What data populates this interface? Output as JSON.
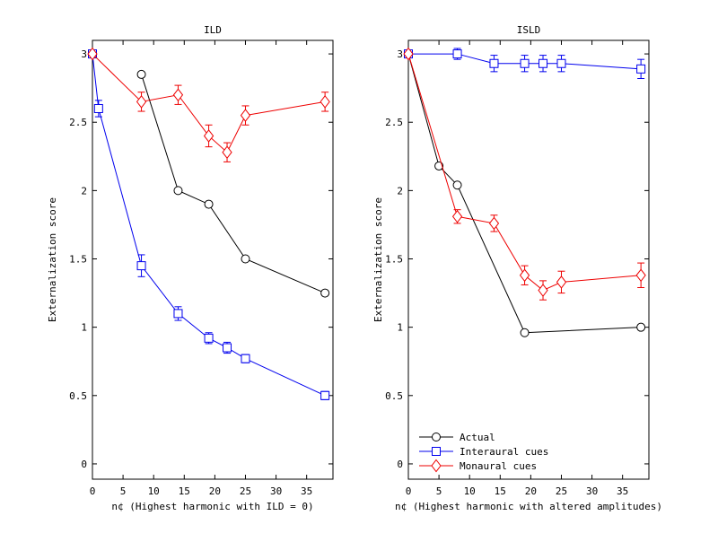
{
  "figure": {
    "background": "#ffffff",
    "axis_color": "#000000"
  },
  "chart_data": [
    {
      "type": "line",
      "title": "ILD",
      "xlabel": "n¢ (Highest harmonic with ILD = 0)",
      "ylabel": "Externalization score",
      "xlim": [
        0,
        39.3
      ],
      "ylim": [
        -0.112,
        3.099
      ],
      "xticks": [
        0,
        5,
        10,
        15,
        20,
        25,
        30,
        35
      ],
      "yticks": [
        0,
        0.5,
        1,
        1.5,
        2,
        2.5,
        3
      ],
      "grid": false,
      "legend": {
        "visible": false
      },
      "series": [
        {
          "name": "Actual",
          "color": "#000000",
          "marker": "circle",
          "x": [
            8,
            14,
            19,
            25,
            38
          ],
          "y": [
            2.85,
            2.0,
            1.9,
            1.5,
            1.25
          ],
          "err": [
            0,
            0,
            0,
            0,
            0
          ]
        },
        {
          "name": "Interaural cues",
          "color": "#0000ee",
          "marker": "square",
          "x": [
            0,
            1,
            8,
            14,
            19,
            22,
            25,
            38
          ],
          "y": [
            3,
            2.6,
            1.45,
            1.1,
            0.92,
            0.85,
            0.77,
            0.5
          ],
          "err": [
            0,
            0.06,
            0.08,
            0.05,
            0.04,
            0.04,
            0.03,
            0.03
          ]
        },
        {
          "name": "Monaural cues",
          "color": "#ee0000",
          "marker": "diamond",
          "x": [
            0,
            8,
            14,
            19,
            22,
            25,
            38
          ],
          "y": [
            3,
            2.65,
            2.7,
            2.4,
            2.28,
            2.55,
            2.65
          ],
          "err": [
            0,
            0.07,
            0.07,
            0.08,
            0.07,
            0.07,
            0.07
          ]
        }
      ]
    },
    {
      "type": "line",
      "title": "ISLD",
      "xlabel": "n¢ (Highest harmonic with altered amplitudes)",
      "ylabel": "Externalization score",
      "xlim": [
        0,
        39.3
      ],
      "ylim": [
        -0.112,
        3.099
      ],
      "xticks": [
        0,
        5,
        10,
        15,
        20,
        25,
        30,
        35
      ],
      "yticks": [
        0,
        0.5,
        1,
        1.5,
        2,
        2.5,
        3
      ],
      "grid": false,
      "legend": {
        "visible": true,
        "position": "southwest",
        "entries": [
          "Actual",
          "Interaural cues",
          "Monaural cues"
        ]
      },
      "series": [
        {
          "name": "Actual",
          "color": "#000000",
          "marker": "circle",
          "x": [
            0,
            5,
            8,
            19,
            38
          ],
          "y": [
            3,
            2.18,
            2.04,
            0.96,
            1.0
          ],
          "err": [
            0,
            0,
            0,
            0,
            0
          ]
        },
        {
          "name": "Interaural cues",
          "color": "#0000ee",
          "marker": "square",
          "x": [
            0,
            8,
            14,
            19,
            22,
            25,
            38
          ],
          "y": [
            3,
            3.0,
            2.93,
            2.93,
            2.93,
            2.93,
            2.89
          ],
          "err": [
            0,
            0.04,
            0.06,
            0.06,
            0.06,
            0.06,
            0.07
          ]
        },
        {
          "name": "Monaural cues",
          "color": "#ee0000",
          "marker": "diamond",
          "x": [
            0,
            8,
            14,
            19,
            22,
            25,
            38
          ],
          "y": [
            3,
            1.81,
            1.76,
            1.38,
            1.27,
            1.33,
            1.38
          ],
          "err": [
            0,
            0.05,
            0.06,
            0.07,
            0.07,
            0.08,
            0.09
          ]
        }
      ]
    }
  ]
}
